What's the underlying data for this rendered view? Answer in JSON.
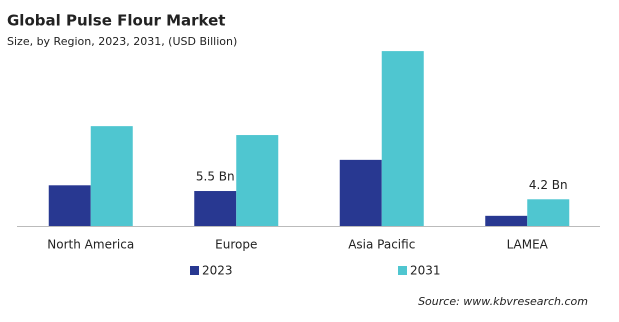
{
  "chart_data": {
    "type": "bar",
    "title": "Global Pulse Flour Market",
    "subtitle": "Size, by Region, 2023, 2031, (USD Billion)",
    "categories": [
      "North America",
      "Europe",
      "Asia Pacific",
      "LAMEA"
    ],
    "series": [
      {
        "name": "2023",
        "color": "#283891",
        "values": [
          6.4,
          5.5,
          10.4,
          1.6
        ],
        "value_labels": [
          null,
          "5.5 Bn",
          null,
          null
        ]
      },
      {
        "name": "2031",
        "color": "#4fc6d0",
        "values": [
          15.7,
          14.3,
          27.5,
          4.2
        ],
        "value_labels": [
          null,
          null,
          null,
          "4.2 Bn"
        ]
      }
    ],
    "source": "Source: www.kbvresearch.com"
  }
}
